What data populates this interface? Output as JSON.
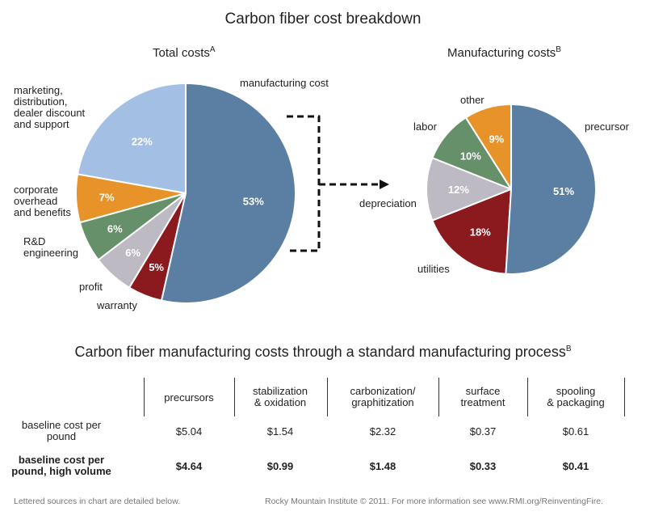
{
  "title": "Carbon fiber cost breakdown",
  "chart_data": [
    {
      "type": "pie",
      "title": "Total costs",
      "title_sup": "A",
      "categories": [
        "manufacturing cost",
        "warranty",
        "profit",
        "R&D engineering",
        "corporate overhead and benefits",
        "marketing, distribution, dealer discount and support"
      ],
      "values": [
        53,
        5,
        6,
        6,
        7,
        22
      ],
      "value_labels": [
        "53%",
        "5%",
        "6%",
        "6%",
        "7%",
        "22%"
      ],
      "colors": [
        "#5a7fa2",
        "#8b1a1e",
        "#bdbac4",
        "#66906a",
        "#e8932a",
        "#a3bfe3"
      ]
    },
    {
      "type": "pie",
      "title": "Manufacturing costs",
      "title_sup": "B",
      "categories": [
        "precursor",
        "utilities",
        "depreciation",
        "labor",
        "other"
      ],
      "values": [
        51,
        18,
        12,
        10,
        9
      ],
      "value_labels": [
        "51%",
        "18%",
        "12%",
        "10%",
        "9%"
      ],
      "colors": [
        "#5a7fa2",
        "#8b1a1e",
        "#bdbac4",
        "#66906a",
        "#e8932a"
      ]
    }
  ],
  "left_labels": [
    "manufacturing cost",
    "warranty",
    "profit",
    "R&D",
    "engineering",
    "corporate",
    "overhead",
    "and benefits",
    "marketing,",
    "distribution,",
    "dealer discount",
    "and support"
  ],
  "right_labels": [
    "precursor",
    "utilities",
    "depreciation",
    "labor",
    "other"
  ],
  "table": {
    "title": "Carbon fiber manufacturing costs through a standard manufacturing process",
    "title_sup": "B",
    "columns": [
      [
        "precursors"
      ],
      [
        "stabilization",
        "& oxidation"
      ],
      [
        "carbonization/",
        "graphitization"
      ],
      [
        "surface",
        "treatment"
      ],
      [
        "spooling",
        "& packaging"
      ]
    ],
    "rows": [
      {
        "label": [
          "baseline cost per",
          "pound"
        ],
        "values": [
          "$5.04",
          "$1.54",
          "$2.32",
          "$0.37",
          "$0.61"
        ]
      },
      {
        "label": [
          "baseline cost per",
          "pound, high volume"
        ],
        "values": [
          "$4.64",
          "$0.99",
          "$1.48",
          "$0.33",
          "$0.41"
        ]
      }
    ]
  },
  "footer": {
    "left": "Lettered sources in chart are detailed below.",
    "right": "Rocky Mountain Institute © 2011. For more information see www.RMI.org/ReinventingFire."
  }
}
